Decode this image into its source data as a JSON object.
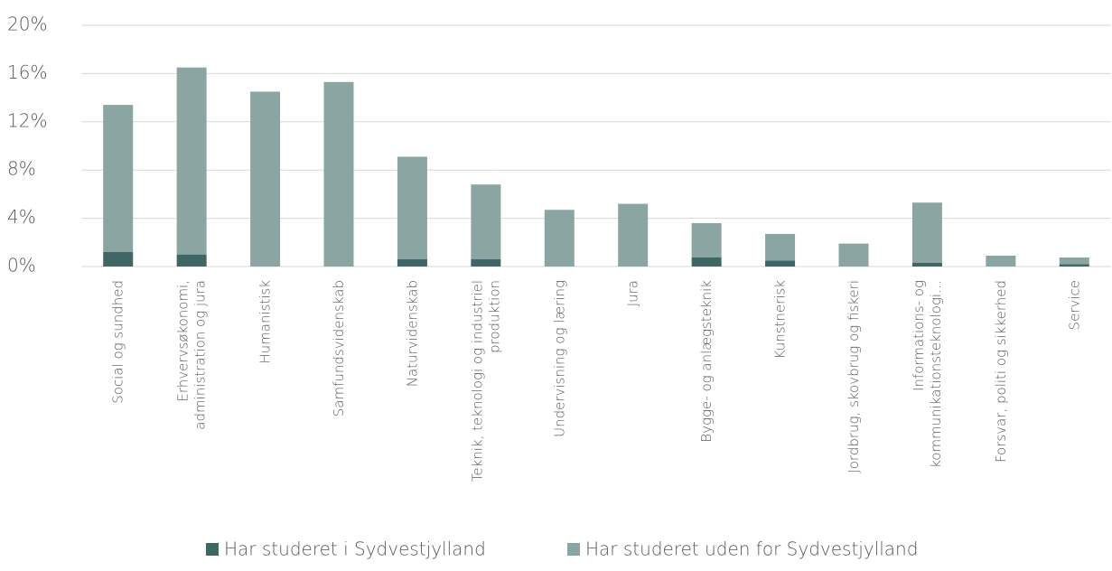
{
  "chart_data": {
    "type": "stacked_bar",
    "categories": [
      "Social og sundhed",
      "Erhvervsøkonomi,\nadministration og jura",
      "Humanistisk",
      "Samfundsvidenskab",
      "Naturvidenskab",
      "Teknik, teknologi og industriel\nproduktion",
      "Undervisning og læring",
      "Jura",
      "Bygge- og anlægsteknik",
      "Kunstnerisk",
      "Jordbrug, skovbrug og fiskeri",
      "Informations- og\nkommunikationsteknologi…",
      "Forsvar, politi og sikkerhed",
      "Service"
    ],
    "series": [
      {
        "name": "Har studeret i Sydvestjylland",
        "color": "#3f6664",
        "values": [
          1.2,
          1.0,
          0,
          0,
          0.6,
          0.6,
          0,
          0,
          0.75,
          0.5,
          0,
          0.3,
          0,
          0.2
        ]
      },
      {
        "name": "Har studeret uden for Sydvestjylland",
        "color": "#8aa5a2",
        "values": [
          12.2,
          15.5,
          14.5,
          15.3,
          8.5,
          6.2,
          4.7,
          5.2,
          2.85,
          2.2,
          1.9,
          5.0,
          0.9,
          0.55
        ]
      }
    ],
    "ylim": [
      0,
      20
    ],
    "yticks": [
      {
        "value": 0,
        "label": "0%"
      },
      {
        "value": 4,
        "label": "4%"
      },
      {
        "value": 8,
        "label": "8%"
      },
      {
        "value": 12,
        "label": "12%"
      },
      {
        "value": 16,
        "label": "16%"
      },
      {
        "value": 20,
        "label": "20%"
      }
    ],
    "grid": true,
    "legend": "bottom"
  }
}
